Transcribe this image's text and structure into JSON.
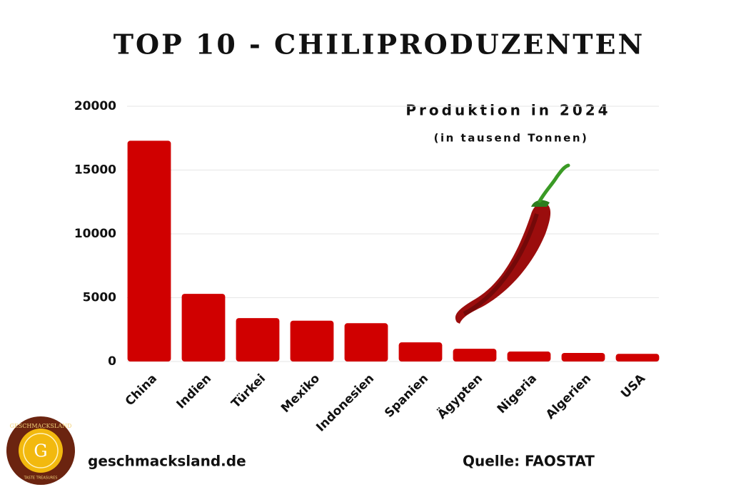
{
  "chart_data": {
    "type": "bar",
    "title": "TOP 10 - CHILIPRODUZENTEN",
    "subtitle": "Produktion in 2024",
    "unit_note": "(in tausend Tonnen)",
    "categories": [
      "China",
      "Indien",
      "Türkei",
      "Mexiko",
      "Indonesien",
      "Spanien",
      "Ägypten",
      "Nigeria",
      "Algerien",
      "USA"
    ],
    "values": [
      17300,
      5300,
      3400,
      3200,
      3000,
      1500,
      1000,
      780,
      670,
      600
    ],
    "color": "#d00000",
    "ylim": [
      0,
      20000
    ],
    "yticks": [
      0,
      5000,
      10000,
      15000,
      20000
    ],
    "grid": true,
    "website": "geschmacksland.de",
    "source": "Quelle: FAOSTAT",
    "logo": {
      "name": "GESCHMACKSLAND",
      "letter": "G",
      "tagline": "TASTE TREASURES"
    }
  }
}
